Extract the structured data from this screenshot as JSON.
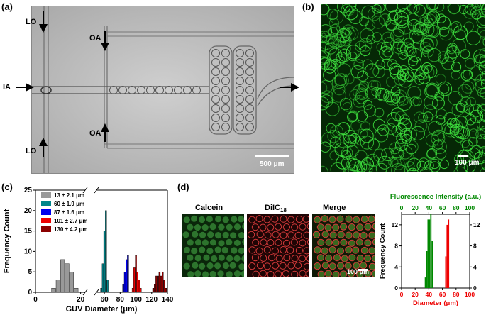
{
  "panels": {
    "a": {
      "letter": "(a)",
      "labels": {
        "lo_top": "LO",
        "oa_top": "OA",
        "ia": "IA",
        "oa_bottom": "OA",
        "lo_bottom": "LO"
      },
      "scalebar": "500 μm"
    },
    "b": {
      "letter": "(b)",
      "scalebar": "100 μm"
    },
    "c": {
      "letter": "(c)"
    },
    "d": {
      "letter": "(d)",
      "tiles": [
        "Calcein",
        "DiIC",
        "Merge"
      ],
      "dii_subscript": "18",
      "scalebar": "100 μm"
    }
  },
  "colors": {
    "gray": "#999999",
    "teal": "#00868b",
    "blue": "#0000ee",
    "red": "#ee0000",
    "darkred": "#8b0000",
    "green": "#008800"
  },
  "chart_data": [
    {
      "type": "bar",
      "xlabel": "GUV Diameter (μm)",
      "ylabel": "Frequency Count",
      "xlim": [
        0,
        140
      ],
      "ylim": [
        0,
        25
      ],
      "x_ticks": [
        "0",
        "20",
        "60",
        "80",
        "100",
        "120",
        "140"
      ],
      "y_ticks": [
        "0",
        "5",
        "10",
        "15",
        "20",
        "25"
      ],
      "legend_position": "top-left",
      "series": [
        {
          "name": "13 ± 2.1 μm",
          "color": "#999999",
          "x": [
            8,
            10,
            12,
            14,
            16,
            18
          ],
          "values": [
            1,
            3,
            8,
            7,
            5,
            1
          ]
        },
        {
          "name": "60 ± 1.9 μm",
          "color": "#00868b",
          "x": [
            56,
            58,
            60,
            62,
            64
          ],
          "values": [
            1,
            7,
            15,
            20,
            3
          ]
        },
        {
          "name": "87 ± 1.6 μm",
          "color": "#0000ee",
          "x": [
            84,
            86,
            88,
            90
          ],
          "values": [
            2,
            5,
            8,
            9
          ]
        },
        {
          "name": "101 ± 2.7 μm",
          "color": "#ee0000",
          "x": [
            96,
            98,
            100,
            102,
            104,
            106
          ],
          "values": [
            1,
            6,
            9,
            5,
            3,
            1
          ]
        },
        {
          "name": "130 ± 4.2 μm",
          "color": "#8b0000",
          "x": [
            122,
            124,
            126,
            128,
            130,
            132,
            134,
            136,
            138
          ],
          "values": [
            1,
            2,
            4,
            4,
            5,
            4,
            5,
            3,
            1
          ]
        }
      ]
    },
    {
      "type": "bar",
      "top_label": "Fluorescence Intensity (a.u.)",
      "xlabel": "Diameter (μm)",
      "ylabel": "Frequency Count",
      "xlim": [
        0,
        100
      ],
      "ylim": [
        0,
        14
      ],
      "x_ticks": [
        "0",
        "20",
        "40",
        "60",
        "80",
        "100"
      ],
      "y_ticks": [
        "0",
        "4",
        "8",
        "12"
      ],
      "series": [
        {
          "name": "Fluorescence Intensity (a.u.)",
          "color": "#008800",
          "x": [
            35,
            37,
            39,
            41,
            43,
            45
          ],
          "values": [
            2,
            7,
            13,
            13,
            14,
            9
          ]
        },
        {
          "name": "Diameter (μm)",
          "color": "#ee0000",
          "x": [
            65,
            67,
            69
          ],
          "values": [
            6,
            12,
            13
          ]
        }
      ]
    }
  ]
}
